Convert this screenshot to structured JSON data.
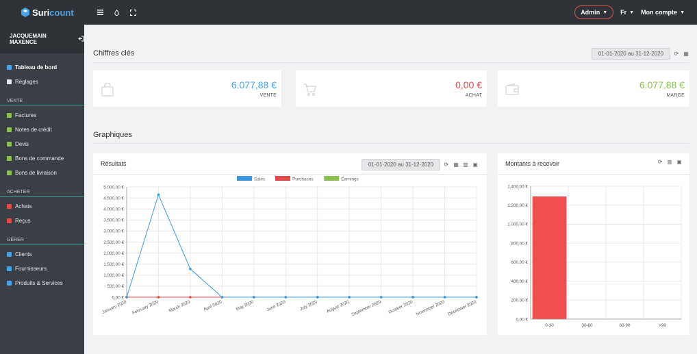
{
  "app": {
    "brand_part1": "Suri",
    "brand_part2": "count",
    "accent_color": "#46a3e6"
  },
  "topbar": {
    "icons": [
      "menu-icon",
      "drop-icon",
      "fullscreen-icon"
    ],
    "admin_label": "Admin",
    "lang_label": "Fr",
    "account_label": "Mon compte"
  },
  "sidebar": {
    "user_name": "JACQUEMAIN MAXENCE",
    "items_top": [
      {
        "label": "Tableau de bord",
        "icon": "dashboard-icon",
        "color": "#46a3e6",
        "active": true
      },
      {
        "label": "Réglages",
        "icon": "gears-icon",
        "color": "#e7e8ea",
        "active": false
      }
    ],
    "sections": [
      {
        "title": "VENTE",
        "items": [
          {
            "label": "Factures",
            "icon": "file-icon",
            "color": "#8cc152"
          },
          {
            "label": "Notes de crédit",
            "icon": "file-icon",
            "color": "#8cc152"
          },
          {
            "label": "Devis",
            "icon": "edit-icon",
            "color": "#8cc152"
          },
          {
            "label": "Bons de commande",
            "icon": "file-icon",
            "color": "#8cc152"
          },
          {
            "label": "Bons de livraison",
            "icon": "file-icon",
            "color": "#8cc152"
          }
        ]
      },
      {
        "title": "ACHETER",
        "items": [
          {
            "label": "Achats",
            "icon": "file-icon",
            "color": "#e04b4b"
          },
          {
            "label": "Reçus",
            "icon": "receipt-icon",
            "color": "#e04b4b"
          }
        ]
      },
      {
        "title": "GÉRER",
        "items": [
          {
            "label": "Clients",
            "icon": "address-book-icon",
            "color": "#46a3e6"
          },
          {
            "label": "Fournisseurs",
            "icon": "truck-icon",
            "color": "#46a3e6"
          },
          {
            "label": "Produits & Services",
            "icon": "boxes-icon",
            "color": "#46a3e6"
          }
        ]
      }
    ]
  },
  "key_figures": {
    "title": "Chiffres clés",
    "date_range": "01-01-2020 au 31-12-2020",
    "cards": [
      {
        "value": "6.077,88 €",
        "label": "VENTE",
        "color": "#46a3e6",
        "icon": "shopping-bag-icon"
      },
      {
        "value": "0,00 €",
        "label": "ACHAT",
        "color": "#e04b4b",
        "icon": "shopping-cart-icon"
      },
      {
        "value": "6.077,88 €",
        "label": "MARGE",
        "color": "#8cc152",
        "icon": "wallet-icon"
      }
    ]
  },
  "charts_section": {
    "title": "Graphiques"
  },
  "results_panel": {
    "title": "Résultats",
    "date_range": "01-01-2020 au 31-12-2020"
  },
  "receivables_panel": {
    "title": "Montants à recevoir"
  },
  "chart_data": [
    {
      "type": "line",
      "categories": [
        "January 2020",
        "February 2020",
        "March 2020",
        "April 2020",
        "May 2020",
        "June 2020",
        "July 2020",
        "August 2020",
        "September 2020",
        "October 2020",
        "November 2020",
        "December 2020"
      ],
      "series": [
        {
          "name": "Sales",
          "color": "#3b97db",
          "values": [
            0,
            4650,
            1280,
            0,
            0,
            0,
            0,
            0,
            0,
            0,
            0,
            0
          ]
        },
        {
          "name": "Purchases",
          "color": "#e04b4b",
          "values": [
            0,
            0,
            0,
            0,
            0,
            0,
            0,
            0,
            0,
            0,
            0,
            0
          ]
        },
        {
          "name": "Earnings",
          "color": "#8cc152",
          "values": [
            0,
            0,
            0,
            0,
            0,
            0,
            0,
            0,
            0,
            0,
            0,
            0
          ]
        }
      ],
      "ylim": [
        0,
        5000
      ],
      "yticks": [
        0,
        500,
        1000,
        1500,
        2000,
        2500,
        3000,
        3500,
        4000,
        4500,
        5000
      ],
      "ytick_labels": [
        "0,00 €",
        "500,00 €",
        "1.000,00 €",
        "1.500,00 €",
        "2.000,00 €",
        "2.500,00 €",
        "3.000,00 €",
        "3.500,00 €",
        "4.000,00 €",
        "4.500,00 €",
        "5.000,00 €"
      ],
      "legend": "top",
      "grid": true
    },
    {
      "type": "bar",
      "categories": [
        "0-30",
        "30-60",
        "60-90",
        ">90"
      ],
      "values": [
        1290,
        0,
        0,
        0
      ],
      "color": "#f05050",
      "ylim": [
        0,
        1400
      ],
      "yticks": [
        0,
        200,
        400,
        600,
        800,
        1000,
        1200,
        1400
      ],
      "ytick_labels": [
        "0,00 €",
        "200,00 €",
        "400,00 €",
        "600,00 €",
        "800,00 €",
        "1.000,00 €",
        "1.200,00 €",
        "1.400,00 €"
      ],
      "grid": true
    }
  ]
}
